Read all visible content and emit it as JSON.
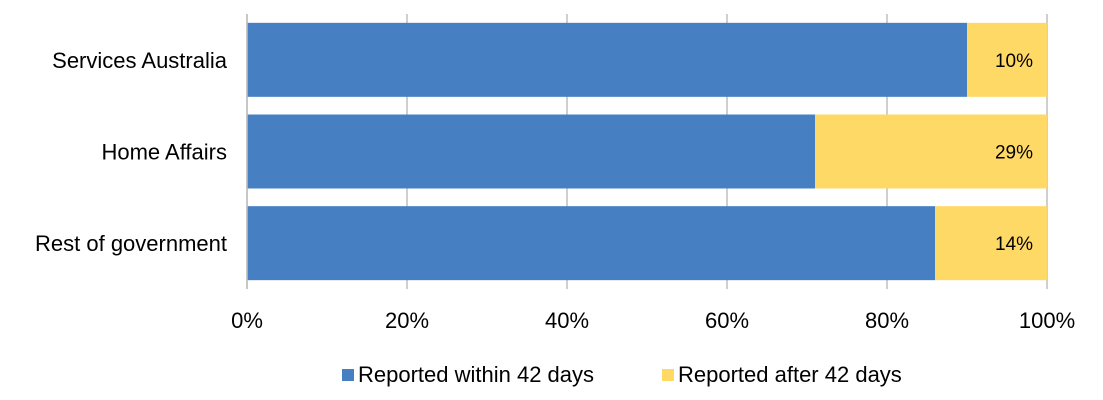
{
  "chart_data": {
    "type": "bar",
    "orientation": "horizontal",
    "stacked": true,
    "categories": [
      "Services Australia",
      "Home Affairs",
      "Rest of government"
    ],
    "series": [
      {
        "name": "Reported within 42 days",
        "values": [
          90,
          71,
          86
        ],
        "color": "#4680c2"
      },
      {
        "name": "Reported after 42 days",
        "values": [
          10,
          29,
          14
        ],
        "color": "#ffd966",
        "data_labels": [
          "10%",
          "29%",
          "14%"
        ]
      }
    ],
    "xlim": [
      0,
      100
    ],
    "x_ticks": [
      0,
      20,
      40,
      60,
      80,
      100
    ],
    "x_tick_labels": [
      "0%",
      "20%",
      "40%",
      "60%",
      "80%",
      "100%"
    ],
    "grid": true,
    "legend": "bottom"
  }
}
